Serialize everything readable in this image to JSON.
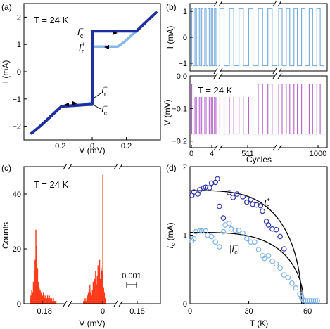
{
  "chart_data": [
    {
      "panel": "(a)",
      "type": "line",
      "annotation": "T = 24 K",
      "xlabel": "V (mV)",
      "ylabel": "I (mA)",
      "xlim": [
        -0.4,
        0.4
      ],
      "ylim": [
        -2.5,
        2.5
      ],
      "xticks": [
        -0.2,
        0,
        0.2
      ],
      "xticklabels": [
        "−0.2",
        "0",
        "0.2"
      ],
      "yticks": [
        -2,
        -1,
        0,
        1,
        2
      ],
      "yticklabels": [
        "−2",
        "−1",
        "0",
        "1",
        "2"
      ],
      "colors": {
        "dark": "#1f2fa0",
        "light": "#87b7e8"
      },
      "series": [
        {
          "color": "dark",
          "points": [
            [
              -0.36,
              -2.28
            ],
            [
              -0.3,
              -1.97
            ],
            [
              -0.24,
              -1.62
            ],
            [
              -0.18,
              -1.27
            ],
            [
              -0.1,
              -1.24
            ],
            [
              -0.03,
              -1.21
            ],
            [
              -0.003,
              -1.2
            ],
            [
              0,
              -1.2
            ],
            [
              0,
              1.48
            ],
            [
              0.006,
              1.49
            ],
            [
              0.26,
              1.49
            ],
            [
              0.3,
              1.73
            ],
            [
              0.38,
              2.2
            ]
          ]
        },
        {
          "color": "light",
          "points": [
            [
              -0.18,
              -1.26
            ],
            [
              -0.12,
              -1.23
            ],
            [
              -0.04,
              -1.2
            ],
            [
              -0.005,
              -1.13
            ],
            [
              0,
              -1.1
            ],
            [
              0,
              0.96
            ],
            [
              0.012,
              0.92
            ],
            [
              0.15,
              0.92
            ],
            [
              0.19,
              1.1
            ],
            [
              0.23,
              1.33
            ],
            [
              0.26,
              1.49
            ]
          ]
        }
      ],
      "labels": [
        {
          "main": "I",
          "sup": "+",
          "sub": "c"
        },
        {
          "main": "I",
          "sup": "+",
          "sub": "r"
        },
        {
          "main": "I",
          "sup": "−",
          "sub": "r"
        },
        {
          "main": "I",
          "sup": "−",
          "sub": "c"
        }
      ]
    },
    {
      "panel": "(b)",
      "type": "line",
      "top": {
        "ylabel": "I (mA)",
        "ylim": [
          -1.3,
          1.3
        ],
        "yticks": [
          -1,
          0,
          1
        ],
        "yticklabels": [
          "−1",
          "0",
          "1"
        ],
        "high": 1.1,
        "low": -1.1,
        "color": "#6fa8dc"
      },
      "bottom": {
        "annotation": "T = 24 K",
        "ylabel": "V (mV)",
        "ylim": [
          -0.22,
          0.0
        ],
        "yticks": [
          -0.2,
          -0.1,
          0.0
        ],
        "yticklabels": [
          "−0.2",
          "−0.1",
          "0.0"
        ],
        "high": -0.025,
        "low": -0.178,
        "color": "#b060c8"
      },
      "xlabel": "Cycles",
      "xticklabels": [
        "0",
        "4",
        "511",
        "1000"
      ],
      "cycles_per_segment": [
        8,
        6,
        6
      ]
    },
    {
      "panel": "(c)",
      "type": "histogram",
      "annotation": "T = 24 K",
      "xlabel": "V (mV)",
      "ylabel": "Counts",
      "ylim": [
        0,
        50
      ],
      "yticks": [
        0,
        20,
        40
      ],
      "yticklabels": [
        "0",
        "20",
        "40"
      ],
      "xticklabels": [
        "−0.18",
        "0",
        "0.18"
      ],
      "scale_bar_label": "0.001",
      "color": "#ff3a1a",
      "left_peak_counts": [
        2,
        3,
        5,
        4,
        8,
        12,
        16,
        27,
        21,
        13,
        8,
        6,
        5,
        4,
        3,
        3,
        4,
        2,
        3,
        2,
        2,
        3,
        2,
        3,
        2,
        1,
        2,
        1,
        2,
        1,
        1,
        1
      ],
      "right_peak_counts": [
        1,
        1,
        2,
        1,
        2,
        3,
        4,
        5,
        7,
        4,
        3,
        5,
        8,
        6,
        9,
        12,
        7,
        10,
        14,
        11,
        16,
        9,
        13,
        12,
        47,
        6,
        4,
        2
      ]
    },
    {
      "panel": "(d)",
      "type": "scatter",
      "xlabel": "T (K)",
      "ylabel": "Ic (mA)",
      "xlim": [
        0,
        70
      ],
      "ylim": [
        0,
        2
      ],
      "xticks": [
        0,
        30,
        60
      ],
      "xticklabels": [
        "0",
        "30",
        "60"
      ],
      "yticks": [
        0,
        1,
        2
      ],
      "yticklabels": [
        "0",
        "1",
        "2"
      ],
      "series": [
        {
          "label": {
            "main": "I",
            "sup": "+",
            "sub": "c"
          },
          "color": "#2c34a6",
          "points": [
            [
              1,
              1.58
            ],
            [
              2,
              1.63
            ],
            [
              4,
              1.6
            ],
            [
              5,
              1.66
            ],
            [
              7,
              1.69
            ],
            [
              8,
              1.7
            ],
            [
              10,
              1.69
            ],
            [
              11,
              1.76
            ],
            [
              13,
              1.77
            ],
            [
              14,
              1.82
            ],
            [
              15,
              1.42
            ],
            [
              17,
              1.25
            ],
            [
              20,
              1.62
            ],
            [
              22,
              1.55
            ],
            [
              24,
              1.6
            ],
            [
              27,
              1.56
            ],
            [
              29,
              1.48
            ],
            [
              31,
              1.52
            ],
            [
              32,
              1.45
            ],
            [
              34,
              1.44
            ],
            [
              36,
              1.43
            ],
            [
              37,
              1.35
            ],
            [
              39,
              1.2
            ],
            [
              40,
              1.15
            ],
            [
              42,
              1.09
            ],
            [
              44,
              1.08
            ],
            [
              46,
              0.98
            ],
            [
              48,
              0.8
            ]
          ]
        },
        {
          "label": {
            "main": "|I",
            "sup": "−",
            "sub": "c",
            "tail": "|"
          },
          "color": "#7fb2e5",
          "points": [
            [
              1,
              0.92
            ],
            [
              2,
              0.95
            ],
            [
              3,
              1.05
            ],
            [
              5,
              1.06
            ],
            [
              6,
              1.06
            ],
            [
              8,
              1.06
            ],
            [
              9,
              1.0
            ],
            [
              11,
              0.98
            ],
            [
              13,
              0.9
            ],
            [
              15,
              0.83
            ],
            [
              17,
              1.05
            ],
            [
              18,
              1.15
            ],
            [
              20,
              1.17
            ],
            [
              21,
              1.09
            ],
            [
              23,
              1.07
            ],
            [
              25,
              1.07
            ],
            [
              27,
              1.03
            ],
            [
              29,
              0.95
            ],
            [
              31,
              0.9
            ],
            [
              33,
              0.9
            ],
            [
              35,
              0.79
            ],
            [
              37,
              0.7
            ],
            [
              38,
              0.66
            ],
            [
              40,
              0.7
            ],
            [
              42,
              0.62
            ],
            [
              44,
              0.58
            ],
            [
              46,
              0.52
            ],
            [
              48,
              0.42
            ],
            [
              50,
              0.38
            ],
            [
              52,
              0.3
            ],
            [
              54,
              0.23
            ],
            [
              56,
              0.14
            ],
            [
              57,
              0.08
            ],
            [
              58,
              0.05
            ],
            [
              59,
              0.04
            ],
            [
              60,
              0.04
            ],
            [
              61,
              0.04
            ],
            [
              62,
              0.04
            ],
            [
              63,
              0.04
            ],
            [
              64,
              0.04
            ],
            [
              65,
              0.04
            ]
          ]
        }
      ],
      "fits": [
        {
          "ic0": 1.65,
          "tc": 57
        },
        {
          "ic0": 1.04,
          "tc": 58
        }
      ]
    }
  ]
}
